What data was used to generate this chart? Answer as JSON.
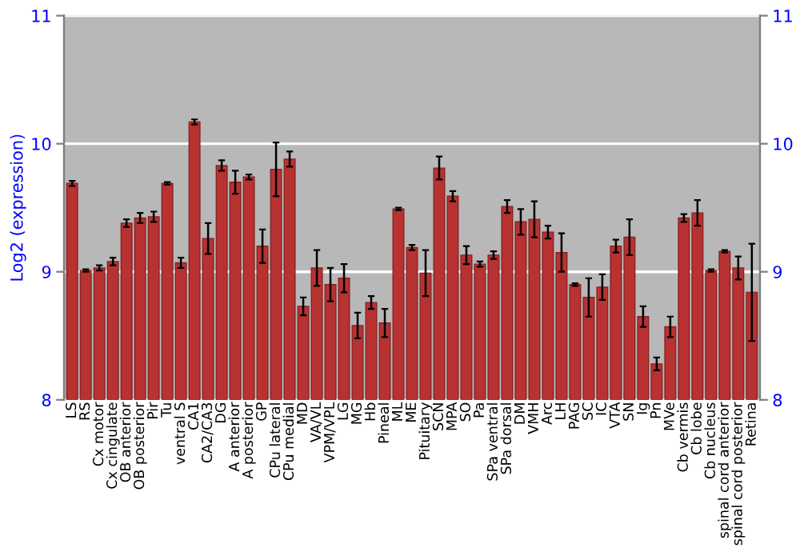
{
  "chart_data": {
    "type": "bar",
    "ylabel": "Log2 (expression)",
    "categories": [
      "LS",
      "RS",
      "Cx motor",
      "Cx cingulate",
      "OB anterior",
      "OB posterior",
      "Pir",
      "Tu",
      "ventral S",
      "CA1",
      "CA2/CA3",
      "DG",
      "A anterior",
      "A posterior",
      "GP",
      "CPu lateral",
      "CPu medial",
      "MD",
      "VA/VL",
      "VPM/VPL",
      "LG",
      "MG",
      "Hb",
      "Pineal",
      "ML",
      "ME",
      "Pituitary",
      "SCN",
      "MPA",
      "SO",
      "Pa",
      "SPa ventral",
      "SPa dorsal",
      "DM",
      "VMH",
      "Arc",
      "LH",
      "PAG",
      "SC",
      "IC",
      "VTA",
      "SN",
      "Ig",
      "Pn",
      "MVe",
      "Cb vermis",
      "Cb lobe",
      "Cb nucleus",
      "spinal cord anterior",
      "spinal cord posterior",
      "Retina"
    ],
    "values": [
      9.69,
      9.01,
      9.03,
      9.08,
      9.38,
      9.42,
      9.43,
      9.69,
      9.07,
      10.17,
      9.26,
      9.83,
      9.7,
      9.74,
      9.2,
      9.8,
      9.88,
      8.73,
      9.03,
      8.9,
      8.95,
      8.58,
      8.76,
      8.6,
      9.49,
      9.19,
      8.99,
      9.81,
      9.59,
      9.13,
      9.06,
      9.13,
      9.51,
      9.39,
      9.41,
      9.31,
      9.15,
      8.9,
      8.8,
      8.88,
      9.2,
      9.27,
      8.65,
      8.28,
      8.57,
      9.42,
      9.46,
      9.01,
      9.16,
      9.03,
      8.84
    ],
    "errors": [
      0.02,
      0.01,
      0.02,
      0.03,
      0.03,
      0.04,
      0.04,
      0.01,
      0.04,
      0.02,
      0.12,
      0.04,
      0.09,
      0.02,
      0.13,
      0.21,
      0.06,
      0.07,
      0.14,
      0.13,
      0.11,
      0.1,
      0.05,
      0.11,
      0.01,
      0.02,
      0.18,
      0.09,
      0.04,
      0.07,
      0.02,
      0.03,
      0.05,
      0.1,
      0.14,
      0.05,
      0.15,
      0.01,
      0.15,
      0.1,
      0.05,
      0.14,
      0.08,
      0.05,
      0.08,
      0.03,
      0.1,
      0.01,
      0.01,
      0.09,
      0.38
    ],
    "color": "#b83232",
    "ylim": [
      8,
      11
    ],
    "yticks": [
      8,
      9,
      10,
      11
    ],
    "y2lim": [
      8,
      11
    ],
    "y2ticks": [
      8,
      9,
      10,
      11
    ],
    "grid": "y"
  }
}
